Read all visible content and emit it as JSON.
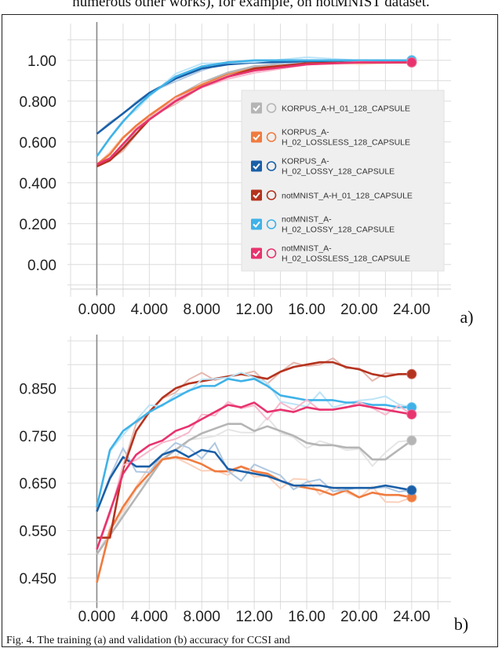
{
  "top_caption": "numerous other works), for example, on notMNIST dataset.",
  "bottom_caption": "Fig. 4. The training (a) and validation (b) accuracy for CCSI and",
  "chart_data": [
    {
      "type": "line",
      "panel_label": "a)",
      "title": "",
      "xlabel": "",
      "ylabel": "",
      "xlim": [
        -2,
        27
      ],
      "ylim": [
        -0.12,
        1.18
      ],
      "x_ticks": [
        0,
        4,
        8,
        12,
        16,
        20,
        24
      ],
      "x_tick_labels": [
        "0.000",
        "4.000",
        "8.000",
        "12.00",
        "16.00",
        "20.00",
        "24.00"
      ],
      "y_ticks": [
        0.0,
        0.2,
        0.4,
        0.6,
        0.8,
        1.0
      ],
      "y_tick_labels": [
        "0.00",
        "0.200",
        "0.400",
        "0.600",
        "0.800",
        "1.00"
      ],
      "legend_position": "right",
      "series": [
        {
          "name": "KORPUS_A-H_01_128_CAPSULE",
          "color": "#b5b5b5",
          "x": [
            0,
            1,
            2,
            3,
            4,
            6,
            8,
            10,
            12,
            16,
            20,
            24
          ],
          "values": [
            0.49,
            0.52,
            0.58,
            0.66,
            0.72,
            0.82,
            0.89,
            0.94,
            0.97,
            0.99,
            0.995,
            0.995
          ]
        },
        {
          "name": "KORPUS_A-H_02_LOSSLESS_128_CAPSULE",
          "color": "#f07b3f",
          "x": [
            0,
            1,
            2,
            3,
            4,
            6,
            8,
            10,
            12,
            16,
            20,
            24
          ],
          "values": [
            0.49,
            0.54,
            0.62,
            0.68,
            0.73,
            0.82,
            0.88,
            0.93,
            0.96,
            0.985,
            0.99,
            0.99
          ]
        },
        {
          "name": "KORPUS_A-H_02_LOSSY_128_CAPSULE",
          "color": "#1a5fa8",
          "x": [
            0,
            1,
            2,
            3,
            4,
            6,
            8,
            10,
            12,
            16,
            20,
            24
          ],
          "values": [
            0.64,
            0.69,
            0.74,
            0.79,
            0.84,
            0.91,
            0.96,
            0.98,
            0.99,
            0.995,
            1.0,
            1.0
          ]
        },
        {
          "name": "notMNIST_A-H_01_128_CAPSULE",
          "color": "#b5331e",
          "x": [
            0,
            1,
            2,
            3,
            4,
            6,
            8,
            10,
            12,
            16,
            20,
            24
          ],
          "values": [
            0.48,
            0.51,
            0.57,
            0.64,
            0.71,
            0.8,
            0.87,
            0.92,
            0.96,
            0.985,
            0.99,
            0.99
          ]
        },
        {
          "name": "notMNIST_A-H_02_LOSSY_128_CAPSULE",
          "color": "#3fb2e8",
          "x": [
            0,
            1,
            2,
            3,
            4,
            6,
            8,
            10,
            12,
            16,
            20,
            24
          ],
          "values": [
            0.53,
            0.62,
            0.7,
            0.77,
            0.83,
            0.92,
            0.97,
            0.99,
            1.0,
            1.0,
            1.0,
            1.0
          ]
        },
        {
          "name": "notMNIST_A-H_02_LOSSLESS_128_CAPSULE",
          "color": "#e8336e",
          "x": [
            0,
            1,
            2,
            3,
            4,
            6,
            8,
            10,
            12,
            16,
            20,
            24
          ],
          "values": [
            0.49,
            0.52,
            0.59,
            0.66,
            0.71,
            0.8,
            0.87,
            0.92,
            0.95,
            0.98,
            0.99,
            0.99
          ]
        }
      ]
    },
    {
      "type": "line",
      "panel_label": "b)",
      "title": "",
      "xlabel": "",
      "ylabel": "",
      "xlim": [
        -2,
        27
      ],
      "ylim": [
        0.4,
        0.96
      ],
      "x_ticks": [
        0,
        4,
        8,
        12,
        16,
        20,
        24
      ],
      "x_tick_labels": [
        "0.000",
        "4.000",
        "8.000",
        "12.00",
        "16.00",
        "20.00",
        "24.00"
      ],
      "y_ticks": [
        0.45,
        0.55,
        0.65,
        0.75,
        0.85
      ],
      "y_tick_labels": [
        "0.450",
        "0.550",
        "0.650",
        "0.750",
        "0.850"
      ],
      "series": [
        {
          "name": "KORPUS_A-H_01_128_CAPSULE",
          "color": "#b5b5b5",
          "x": [
            0,
            1,
            2,
            3,
            4,
            5,
            6,
            7,
            8,
            9,
            10,
            11,
            12,
            13,
            14,
            15,
            16,
            17,
            18,
            19,
            20,
            21,
            22,
            23,
            24
          ],
          "values": [
            0.5,
            0.54,
            0.58,
            0.62,
            0.66,
            0.7,
            0.72,
            0.74,
            0.755,
            0.765,
            0.775,
            0.775,
            0.76,
            0.77,
            0.76,
            0.75,
            0.735,
            0.73,
            0.73,
            0.725,
            0.725,
            0.7,
            0.7,
            0.72,
            0.74
          ]
        },
        {
          "name": "KORPUS_A-H_02_LOSSLESS_128_CAPSULE",
          "color": "#f07b3f",
          "x": [
            0,
            1,
            2,
            3,
            4,
            5,
            6,
            7,
            8,
            9,
            10,
            11,
            12,
            13,
            14,
            15,
            16,
            17,
            18,
            19,
            20,
            21,
            22,
            23,
            24
          ],
          "values": [
            0.44,
            0.55,
            0.6,
            0.64,
            0.67,
            0.7,
            0.705,
            0.7,
            0.69,
            0.675,
            0.675,
            0.685,
            0.675,
            0.67,
            0.655,
            0.645,
            0.64,
            0.635,
            0.625,
            0.635,
            0.62,
            0.63,
            0.625,
            0.625,
            0.62
          ]
        },
        {
          "name": "KORPUS_A-H_02_LOSSY_128_CAPSULE",
          "color": "#1a5fa8",
          "x": [
            0,
            1,
            2,
            3,
            4,
            5,
            6,
            7,
            8,
            9,
            10,
            11,
            12,
            13,
            14,
            15,
            16,
            17,
            18,
            19,
            20,
            21,
            22,
            23,
            24
          ],
          "values": [
            0.59,
            0.66,
            0.705,
            0.685,
            0.685,
            0.71,
            0.72,
            0.705,
            0.72,
            0.715,
            0.68,
            0.675,
            0.67,
            0.665,
            0.655,
            0.645,
            0.645,
            0.645,
            0.64,
            0.64,
            0.64,
            0.64,
            0.645,
            0.64,
            0.635
          ]
        },
        {
          "name": "notMNIST_A-H_01_128_CAPSULE",
          "color": "#b5331e",
          "x": [
            0,
            1,
            2,
            3,
            4,
            5,
            6,
            7,
            8,
            9,
            10,
            11,
            12,
            13,
            14,
            15,
            16,
            17,
            18,
            19,
            20,
            21,
            22,
            23,
            24
          ],
          "values": [
            0.535,
            0.535,
            0.68,
            0.76,
            0.8,
            0.83,
            0.85,
            0.86,
            0.865,
            0.87,
            0.875,
            0.88,
            0.875,
            0.87,
            0.885,
            0.895,
            0.9,
            0.905,
            0.905,
            0.895,
            0.89,
            0.88,
            0.875,
            0.88,
            0.88
          ]
        },
        {
          "name": "notMNIST_A-H_02_LOSSY_128_CAPSULE",
          "color": "#3fb2e8",
          "x": [
            0,
            1,
            2,
            3,
            4,
            5,
            6,
            7,
            8,
            9,
            10,
            11,
            12,
            13,
            14,
            15,
            16,
            17,
            18,
            19,
            20,
            21,
            22,
            23,
            24
          ],
          "values": [
            0.6,
            0.72,
            0.76,
            0.78,
            0.8,
            0.815,
            0.83,
            0.845,
            0.855,
            0.855,
            0.87,
            0.865,
            0.87,
            0.855,
            0.835,
            0.83,
            0.825,
            0.825,
            0.825,
            0.82,
            0.82,
            0.815,
            0.815,
            0.81,
            0.81
          ]
        },
        {
          "name": "notMNIST_A-H_02_LOSSLESS_128_CAPSULE",
          "color": "#e8336e",
          "x": [
            0,
            1,
            2,
            3,
            4,
            5,
            6,
            7,
            8,
            9,
            10,
            11,
            12,
            13,
            14,
            15,
            16,
            17,
            18,
            19,
            20,
            21,
            22,
            23,
            24
          ],
          "values": [
            0.51,
            0.59,
            0.67,
            0.71,
            0.73,
            0.74,
            0.76,
            0.77,
            0.785,
            0.8,
            0.815,
            0.81,
            0.82,
            0.8,
            0.805,
            0.8,
            0.81,
            0.805,
            0.805,
            0.81,
            0.815,
            0.81,
            0.805,
            0.8,
            0.795
          ]
        }
      ]
    }
  ]
}
